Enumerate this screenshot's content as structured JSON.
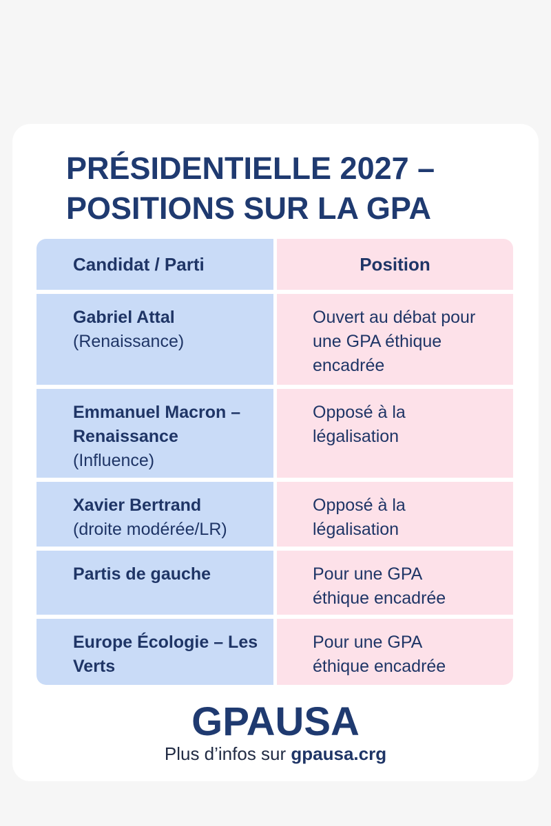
{
  "title_lines": [
    "PRÉSIDENTIELLE 2027 –",
    "POSITIONS SUR LA GPA"
  ],
  "table": {
    "header": [
      "Candidat / Parti",
      "Position"
    ],
    "rows": [
      {
        "name": "Gabriel Attal",
        "party": "(Renaissance)",
        "position": "Ouvert au débat pour une GPA éthique encadrée"
      },
      {
        "name": "Emmanuel Macron – Renaissance",
        "party": "(Influence)",
        "position": "Opposé à la légalisation"
      },
      {
        "name": "Xavier Bertrand",
        "party": "(droite modérée/LR)",
        "position": "Opposé à la légalisation"
      },
      {
        "name": "Partis de gauche",
        "position": "Pour une GPA éthique encadrée"
      },
      {
        "name": "Europe Écologie – Les Verts",
        "position": "Pour une GPA éthique encadrée"
      }
    ]
  },
  "footer": {
    "brand": "GPAUSA",
    "text": "Plus d’infos sur",
    "link": "gpausa.crg"
  }
}
